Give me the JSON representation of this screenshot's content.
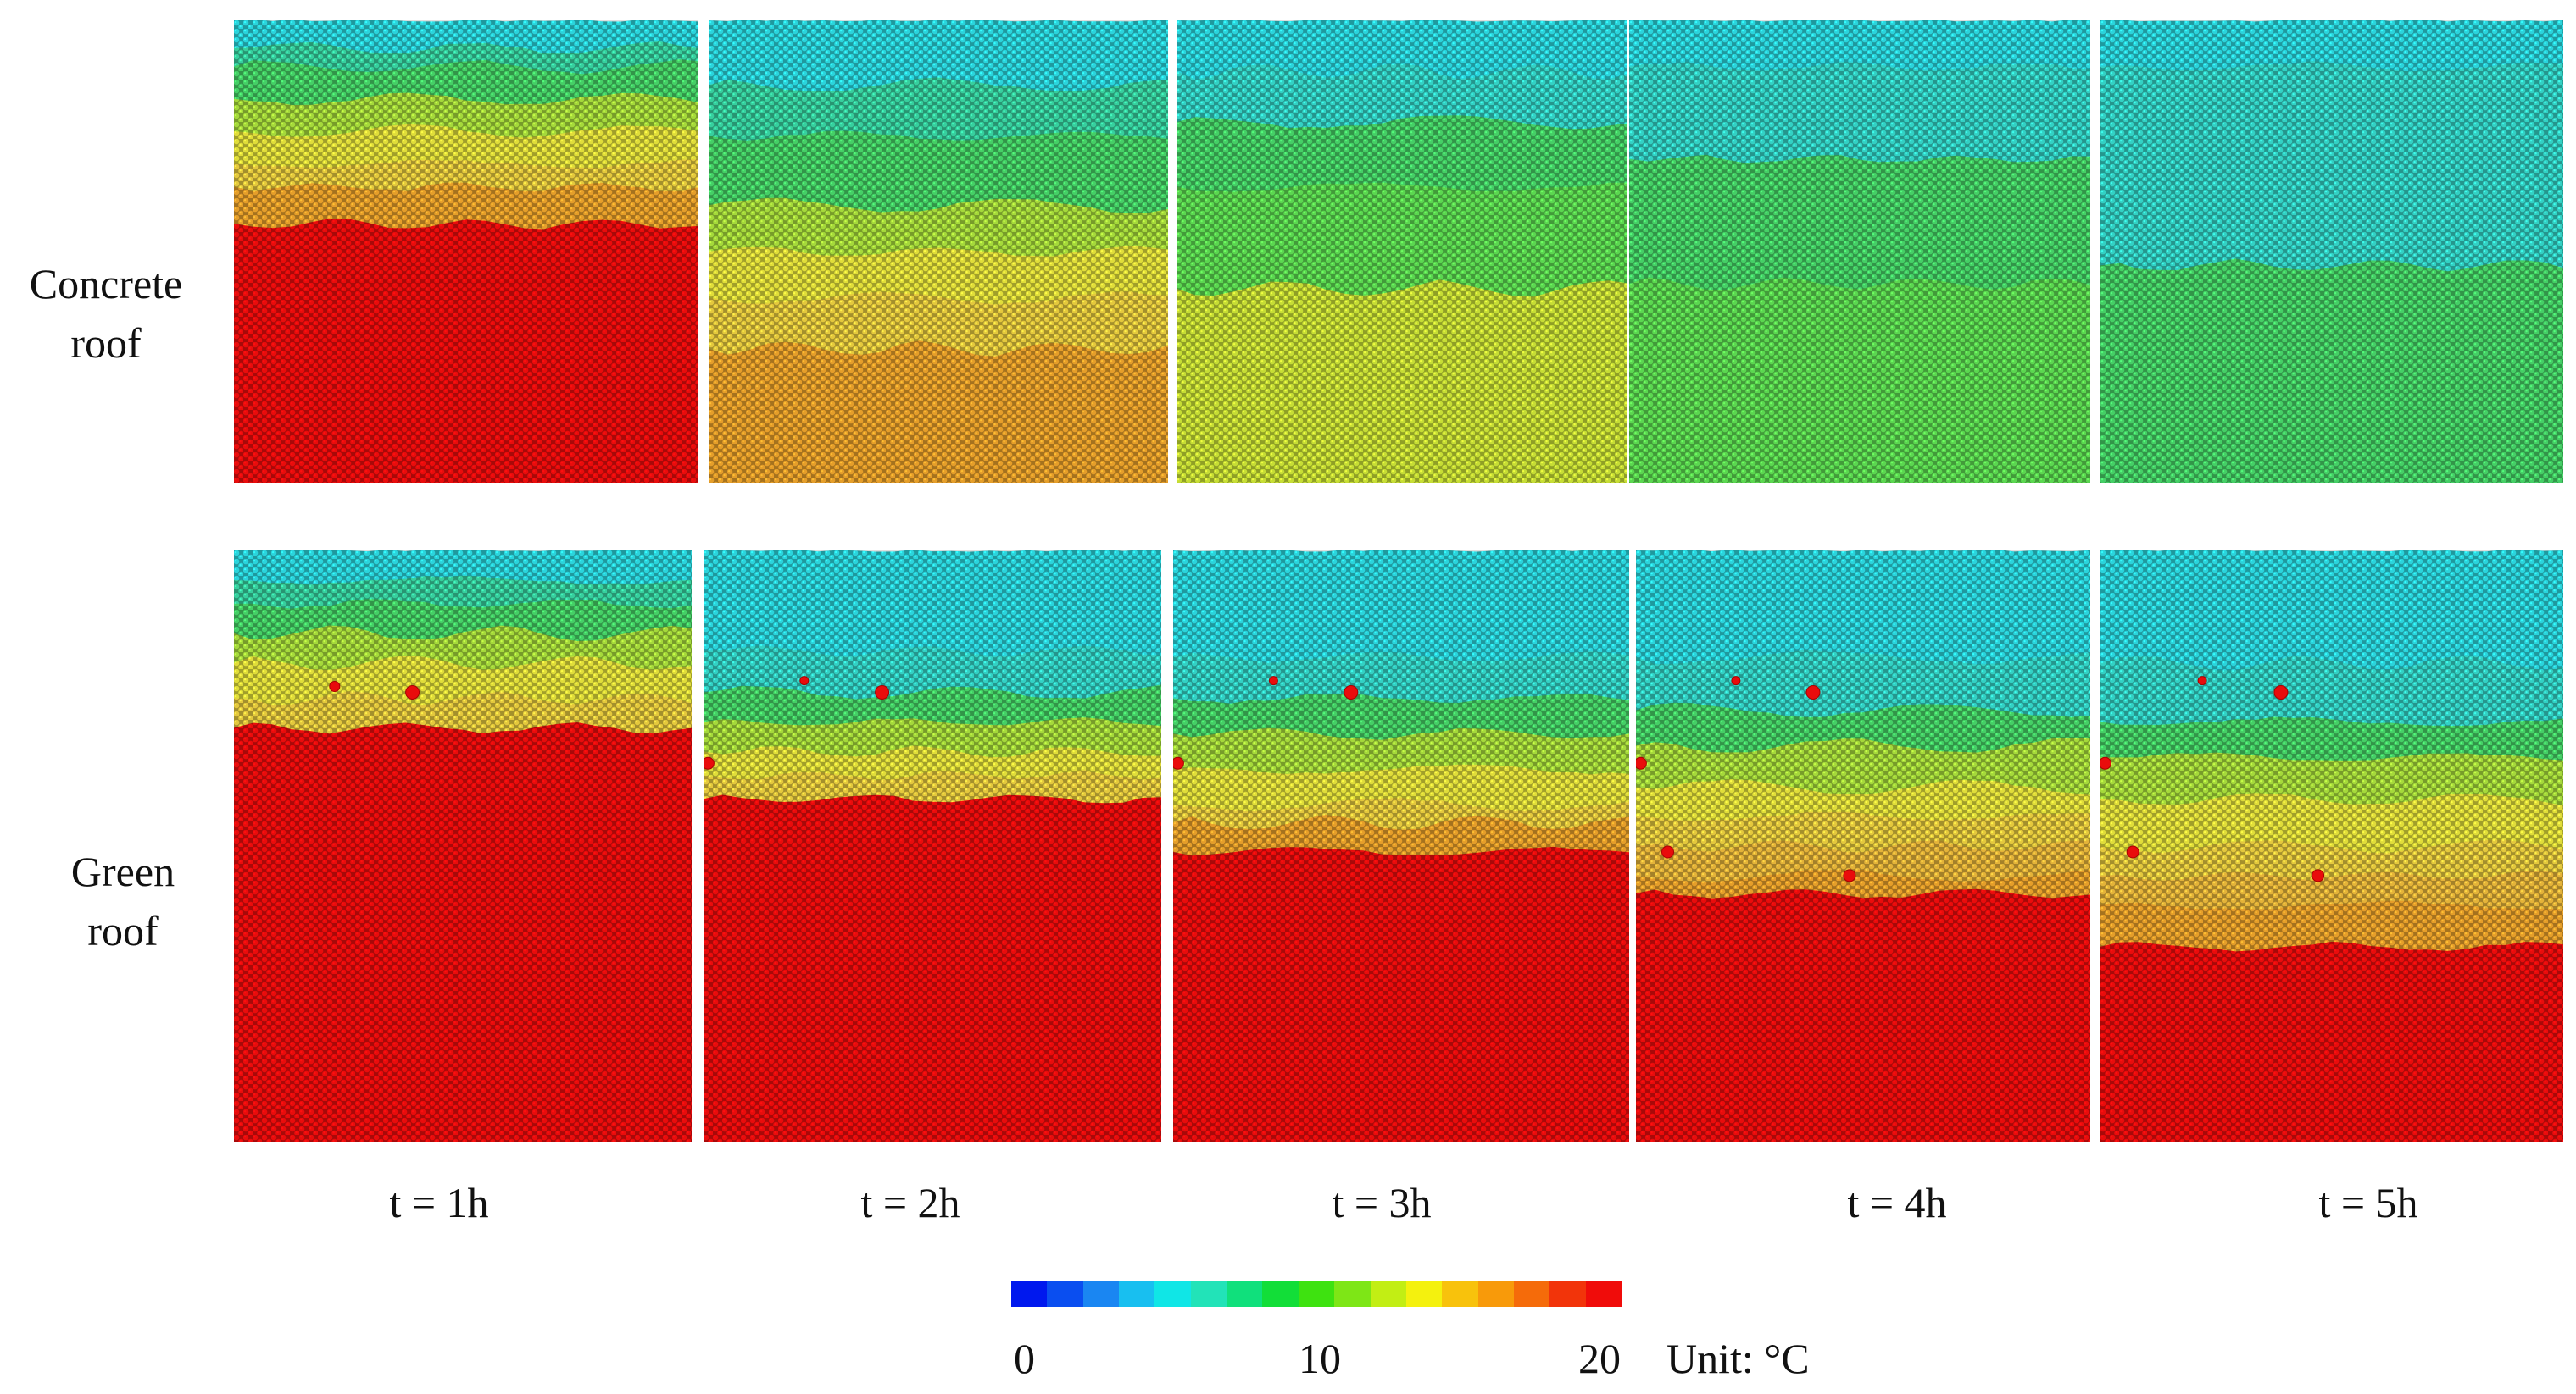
{
  "rows": [
    {
      "id": "concrete",
      "label_line1": "Concrete",
      "label_line2": "roof"
    },
    {
      "id": "green",
      "label_line1": "Green",
      "label_line2": "roof"
    }
  ],
  "time_labels": [
    "t = 1h",
    "t = 2h",
    "t = 3h",
    "t = 4h",
    "t = 5h"
  ],
  "colorbar": {
    "ticks": [
      "0",
      "10",
      "20"
    ],
    "unit": "Unit: °C",
    "colors": [
      "#0018ee",
      "#0a4ef0",
      "#1a86f2",
      "#18bff0",
      "#10e6e6",
      "#22e3b8",
      "#10e07c",
      "#12de38",
      "#3ee210",
      "#7ee616",
      "#c2ee14",
      "#f4f10e",
      "#f8c20c",
      "#f89a0a",
      "#f56b0a",
      "#f2340a",
      "#f00c0a"
    ]
  },
  "panel_colors": {
    "red": "#e90c0c",
    "orange": "#e59e2a",
    "lt_orange": "#e4b339",
    "gold": "#e4c83d",
    "yellow": "#e0dd3a",
    "ylgreen": "#c6dd35",
    "lime": "#a5d93b",
    "green": "#5bd750",
    "green2": "#45cf66",
    "teal": "#37cf9e",
    "aqua": "#33d1c4",
    "cyan": "#2bd4dc"
  },
  "fields": {
    "concrete": [
      {
        "b": [
          [
            "cyan",
            0.0
          ],
          [
            "teal",
            0.06
          ],
          [
            "green2",
            0.1
          ],
          [
            "lime",
            0.17
          ],
          [
            "yellow",
            0.24
          ],
          [
            "gold",
            0.31
          ],
          [
            "orange",
            0.36
          ],
          [
            "red",
            0.44
          ]
        ],
        "dots": []
      },
      {
        "b": [
          [
            "cyan",
            0.0
          ],
          [
            "teal",
            0.14
          ],
          [
            "green2",
            0.25
          ],
          [
            "lime",
            0.4
          ],
          [
            "yellow",
            0.5
          ],
          [
            "gold",
            0.6
          ],
          [
            "orange",
            0.71
          ]
        ],
        "dots": []
      },
      {
        "b": [
          [
            "cyan",
            0.0
          ],
          [
            "aqua",
            0.11
          ],
          [
            "green2",
            0.22
          ],
          [
            "green",
            0.36
          ],
          [
            "ylgreen",
            0.58
          ]
        ],
        "dots": []
      },
      {
        "b": [
          [
            "cyan",
            0.0
          ],
          [
            "aqua",
            0.1
          ],
          [
            "green2",
            0.3
          ],
          [
            "green",
            0.57
          ]
        ],
        "dots": []
      },
      {
        "b": [
          [
            "cyan",
            0.0
          ],
          [
            "aqua",
            0.1
          ],
          [
            "green2",
            0.53
          ]
        ],
        "dots": []
      }
    ],
    "green": [
      {
        "b": [
          [
            "cyan",
            0.0
          ],
          [
            "teal",
            0.05
          ],
          [
            "green2",
            0.09
          ],
          [
            "lime",
            0.14
          ],
          [
            "yellow",
            0.19
          ],
          [
            "gold",
            0.25
          ],
          [
            "red",
            0.3
          ]
        ],
        "dots": [
          [
            0.22,
            0.23,
            6
          ],
          [
            0.39,
            0.24,
            8
          ]
        ]
      },
      {
        "b": [
          [
            "cyan",
            0.0
          ],
          [
            "aqua",
            0.17
          ],
          [
            "green2",
            0.24
          ],
          [
            "lime",
            0.29
          ],
          [
            "yellow",
            0.34
          ],
          [
            "gold",
            0.38
          ],
          [
            "red",
            0.42
          ]
        ],
        "dots": [
          [
            0.22,
            0.22,
            5
          ],
          [
            0.39,
            0.24,
            8
          ],
          [
            0.01,
            0.36,
            7
          ]
        ]
      },
      {
        "b": [
          [
            "cyan",
            0.0
          ],
          [
            "aqua",
            0.18
          ],
          [
            "green2",
            0.25
          ],
          [
            "lime",
            0.31
          ],
          [
            "yellow",
            0.37
          ],
          [
            "gold",
            0.43
          ],
          [
            "orange",
            0.46
          ],
          [
            "red",
            0.51
          ]
        ],
        "dots": [
          [
            0.22,
            0.22,
            5
          ],
          [
            0.39,
            0.24,
            8
          ],
          [
            0.01,
            0.36,
            7
          ]
        ]
      },
      {
        "b": [
          [
            "cyan",
            0.0
          ],
          [
            "aqua",
            0.18
          ],
          [
            "green2",
            0.27
          ],
          [
            "lime",
            0.33
          ],
          [
            "yellow",
            0.4
          ],
          [
            "gold",
            0.45
          ],
          [
            "lt_orange",
            0.5
          ],
          [
            "orange",
            0.55
          ],
          [
            "red",
            0.58
          ]
        ],
        "dots": [
          [
            0.22,
            0.22,
            5
          ],
          [
            0.39,
            0.24,
            8
          ],
          [
            0.01,
            0.36,
            7
          ],
          [
            0.07,
            0.51,
            7
          ],
          [
            0.47,
            0.55,
            7
          ]
        ]
      },
      {
        "b": [
          [
            "cyan",
            0.0
          ],
          [
            "aqua",
            0.19
          ],
          [
            "green2",
            0.29
          ],
          [
            "lime",
            0.35
          ],
          [
            "yellow",
            0.42
          ],
          [
            "gold",
            0.5
          ],
          [
            "lt_orange",
            0.55
          ],
          [
            "orange",
            0.6
          ],
          [
            "red",
            0.67
          ]
        ],
        "dots": [
          [
            0.22,
            0.22,
            5
          ],
          [
            0.39,
            0.24,
            8
          ],
          [
            0.01,
            0.36,
            7
          ],
          [
            0.07,
            0.51,
            7
          ],
          [
            0.47,
            0.55,
            7
          ]
        ]
      }
    ]
  }
}
